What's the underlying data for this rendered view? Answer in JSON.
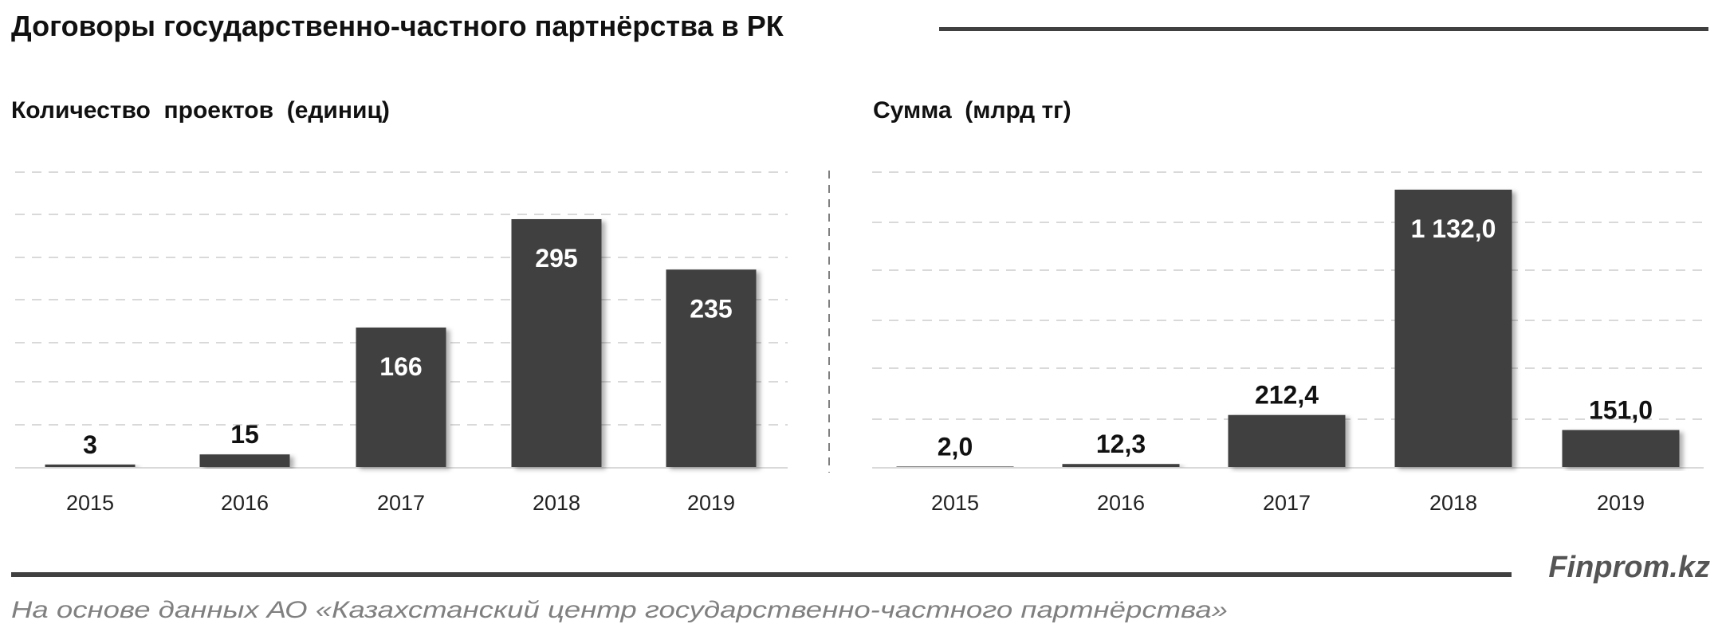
{
  "title": "Договоры государственно-частного партнёрства в РК",
  "brand": "Finprom.kz",
  "source": "На основе данных АО «Казахстанский центр государственно-частного партнёрства»",
  "colors": {
    "bar": "#404040",
    "grid": "#d9d9d9",
    "rule": "#404040",
    "source_text": "#808080"
  },
  "chart_data": [
    {
      "type": "bar",
      "title": "Количество  проектов  (единиц)",
      "categories": [
        "2015",
        "2016",
        "2017",
        "2018",
        "2019"
      ],
      "values": [
        3,
        15,
        166,
        295,
        235
      ],
      "labels": [
        "3",
        "15",
        "166",
        "295",
        "235"
      ],
      "ylim": [
        0,
        350
      ],
      "grid": true,
      "axis_labels_shown": false
    },
    {
      "type": "bar",
      "title": "Сумма  (млрд тг)",
      "categories": [
        "2015",
        "2016",
        "2017",
        "2018",
        "2019"
      ],
      "values": [
        2.0,
        12.3,
        212.4,
        1132.0,
        151.0
      ],
      "labels": [
        "2,0",
        "12,3",
        "212,4",
        "1 132,0",
        "151,0"
      ],
      "ylim": [
        0,
        1200
      ],
      "grid": true,
      "axis_labels_shown": false
    }
  ]
}
